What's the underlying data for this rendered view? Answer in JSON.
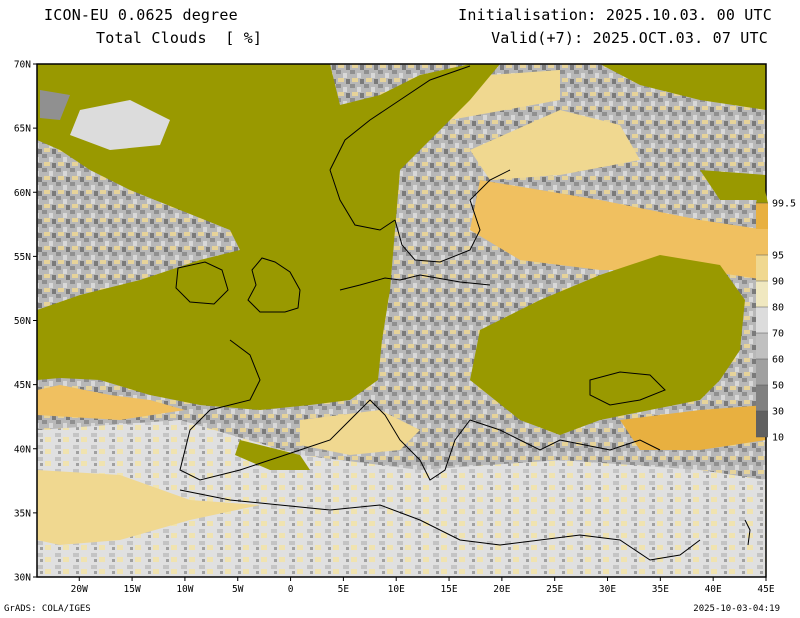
{
  "header": {
    "title_line1": "ICON-EU 0.0625 degree",
    "title_line2": "Total Clouds  [ %]",
    "initialisation": "Initialisation: 2025.10.03. 00 UTC",
    "valid": "Valid(+7): 2025.OCT.03. 07 UTC"
  },
  "map": {
    "lon_range": [
      -24,
      45
    ],
    "lat_range": [
      30,
      70
    ],
    "lat_ticks": [
      "30N",
      "35N",
      "40N",
      "45N",
      "50N",
      "55N",
      "60N",
      "65N",
      "70N"
    ],
    "lon_ticks": [
      "20W",
      "15W",
      "10W",
      "5W",
      "0",
      "5E",
      "10E",
      "15E",
      "20E",
      "25E",
      "30E",
      "35E",
      "40E",
      "45E"
    ],
    "overcast_color": "#999900"
  },
  "colorbar": {
    "labels": [
      "10",
      "30",
      "50",
      "60",
      "70",
      "80",
      "90",
      "95",
      "99.5"
    ],
    "colors": [
      "#606060",
      "#808080",
      "#a0a0a0",
      "#c0c0c0",
      "#dcdcdc",
      "#f0e8c0",
      "#f0d890",
      "#f0c060",
      "#e8b040",
      "#999900"
    ]
  },
  "footer": {
    "left": "GrADS: COLA/IGES",
    "right": "2025-10-03-04:19"
  }
}
